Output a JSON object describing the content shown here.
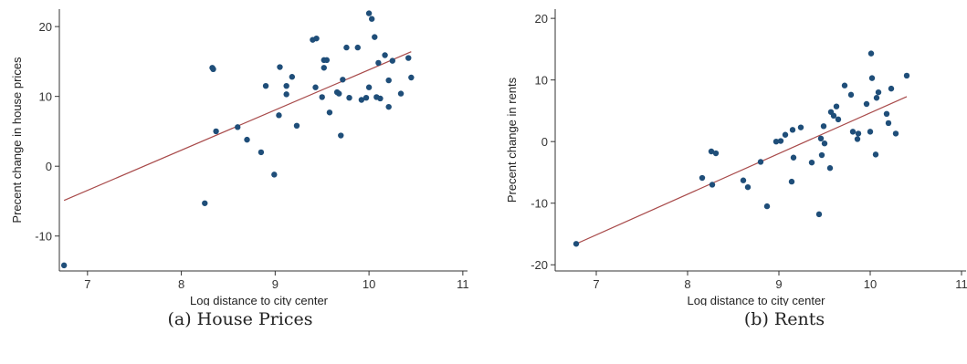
{
  "chart_data": [
    {
      "type": "scatter",
      "caption": "(a) House Prices",
      "xlabel": "Log distance to city center",
      "ylabel": "Precent change in house prices",
      "xlim": [
        6.7,
        11.05
      ],
      "ylim": [
        -15,
        22.5
      ],
      "xticks": [
        7,
        8,
        9,
        10,
        11
      ],
      "yticks": [
        -10,
        0,
        10,
        20
      ],
      "fit_line": {
        "x": [
          6.75,
          10.45
        ],
        "y": [
          -4.9,
          16.4
        ]
      },
      "points": {
        "x": [
          6.75,
          8.25,
          8.33,
          8.34,
          8.37,
          8.6,
          8.7,
          8.85,
          8.9,
          8.99,
          9.04,
          9.05,
          9.12,
          9.12,
          9.18,
          9.23,
          9.4,
          9.43,
          9.44,
          9.5,
          9.52,
          9.52,
          9.55,
          9.58,
          9.66,
          9.68,
          9.7,
          9.72,
          9.76,
          9.79,
          9.88,
          9.92,
          9.97,
          10.0,
          10.0,
          10.03,
          10.06,
          10.08,
          10.1,
          10.12,
          10.17,
          10.21,
          10.21,
          10.25,
          10.34,
          10.42,
          10.45
        ],
        "y": [
          -14.2,
          -5.3,
          14.1,
          13.9,
          5.0,
          5.6,
          3.8,
          2.0,
          11.5,
          -1.2,
          7.3,
          14.2,
          11.5,
          10.3,
          12.8,
          5.8,
          18.1,
          11.3,
          18.3,
          9.9,
          15.2,
          14.1,
          15.2,
          7.7,
          10.6,
          10.4,
          4.4,
          12.4,
          17.0,
          9.8,
          17.0,
          9.5,
          9.8,
          21.9,
          11.3,
          21.1,
          18.5,
          9.9,
          14.8,
          9.7,
          15.9,
          12.3,
          8.5,
          15.1,
          10.4,
          15.5,
          12.7
        ]
      }
    },
    {
      "type": "scatter",
      "caption": "(b) Rents",
      "xlabel": "Log distance to city center",
      "ylabel": "Precent change in rents",
      "xlim": [
        6.55,
        11.05
      ],
      "ylim": [
        -21,
        21.5
      ],
      "xticks": [
        7,
        8,
        9,
        10,
        11
      ],
      "yticks": [
        -20,
        -10,
        0,
        10,
        20
      ],
      "fit_line": {
        "x": [
          6.78,
          10.4
        ],
        "y": [
          -16.6,
          7.3
        ]
      },
      "points": {
        "x": [
          6.78,
          8.16,
          8.26,
          8.27,
          8.31,
          8.61,
          8.66,
          8.8,
          8.87,
          8.97,
          9.02,
          9.07,
          9.14,
          9.15,
          9.16,
          9.24,
          9.36,
          9.44,
          9.46,
          9.47,
          9.49,
          9.5,
          9.56,
          9.57,
          9.6,
          9.63,
          9.65,
          9.72,
          9.79,
          9.81,
          9.86,
          9.87,
          9.96,
          10.0,
          10.01,
          10.02,
          10.06,
          10.07,
          10.09,
          10.18,
          10.2,
          10.23,
          10.28,
          10.4
        ],
        "y": [
          -16.6,
          -5.9,
          -1.6,
          -7.0,
          -1.9,
          -6.3,
          -7.4,
          -3.3,
          -10.5,
          0.0,
          0.1,
          1.1,
          -6.5,
          1.9,
          -2.6,
          2.3,
          -3.4,
          -11.8,
          0.5,
          -2.2,
          2.5,
          -0.3,
          -4.3,
          4.8,
          4.2,
          5.7,
          3.6,
          9.1,
          7.6,
          1.6,
          0.4,
          1.3,
          6.1,
          1.6,
          14.3,
          10.3,
          -2.1,
          7.1,
          8.0,
          4.5,
          3.0,
          8.6,
          1.3,
          10.7
        ]
      }
    }
  ]
}
